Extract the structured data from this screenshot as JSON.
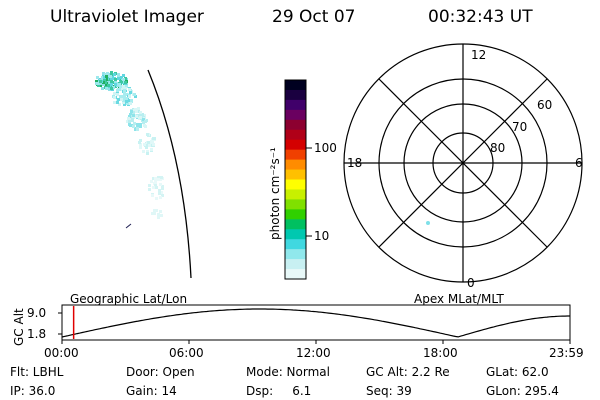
{
  "header": {
    "title": "Ultraviolet Imager",
    "date": "29 Oct 07",
    "time": "00:32:43 UT"
  },
  "colorbar": {
    "label": "photon cm⁻²s⁻¹",
    "ticks": [
      "100",
      "10"
    ]
  },
  "polar": {
    "mlt_labels": [
      "12",
      "18",
      "6",
      "0"
    ],
    "lat_labels": [
      "60",
      "70",
      "80"
    ]
  },
  "timeline": {
    "left_label": "Geographic Lat/Lon",
    "right_label": "Apex MLat/MLT",
    "y_axis_label": "GC Alt",
    "y_ticks": [
      "9.0",
      "1.8"
    ],
    "x_ticks": [
      "00:00",
      "06:00",
      "12:00",
      "18:00",
      "23:59"
    ],
    "marker_time_hours": 0.55,
    "colors": {
      "marker": "#e00000"
    }
  },
  "footer": {
    "row1": [
      "Flt: LBHL",
      "Door: Open",
      "Mode: Normal",
      "GC Alt: 2.2 Re",
      "GLat: 62.0"
    ],
    "row2": [
      "IP: 36.0",
      "Gain: 14",
      "Dsp:     6.1",
      "Seq: 39",
      "GLon: 295.4"
    ]
  }
}
